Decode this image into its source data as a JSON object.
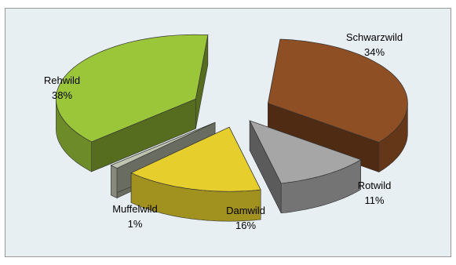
{
  "chart_data": {
    "type": "pie",
    "style": "3d-exploded",
    "title": "",
    "slices": [
      {
        "label": "Schwarzwild",
        "value": 34,
        "display": "34%",
        "color": "#8f4f24"
      },
      {
        "label": "Rotwild",
        "value": 11,
        "display": "11%",
        "color": "#a6a6a6"
      },
      {
        "label": "Damwild",
        "value": 16,
        "display": "16%",
        "color": "#e6cf2c"
      },
      {
        "label": "Muffelwild",
        "value": 1,
        "display": "1%",
        "color": "#bfc4b0"
      },
      {
        "label": "Rehwild",
        "value": 38,
        "display": "38%",
        "color": "#9cc63a"
      }
    ]
  }
}
